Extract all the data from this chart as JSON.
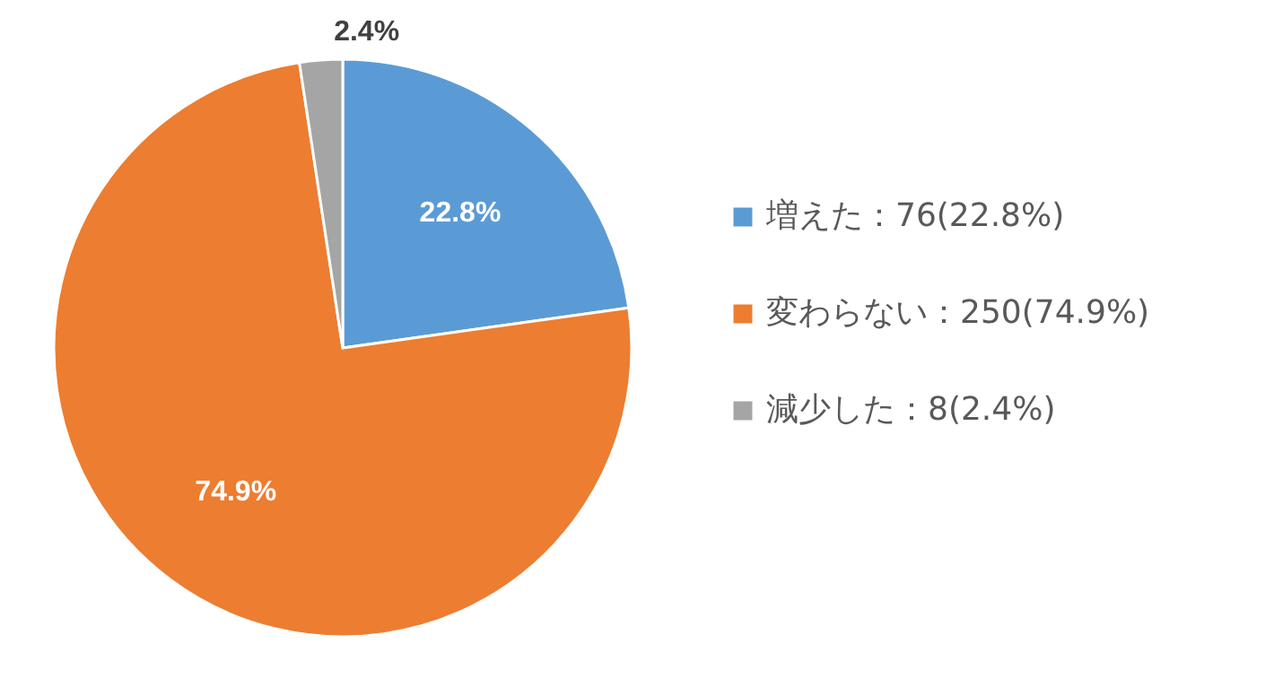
{
  "chart_data": {
    "type": "pie",
    "categories": [
      "増えた：76(22.8%)",
      "変わらない：250(74.9%)",
      "減少した：8(2.4%)"
    ],
    "values": [
      22.8,
      74.9,
      2.4
    ],
    "colors": [
      "#5b9bd5",
      "#ed7d31",
      "#a5a5a5"
    ],
    "value_labels": [
      "22.8%",
      "74.9%",
      "2.4%"
    ],
    "legend": "right"
  }
}
